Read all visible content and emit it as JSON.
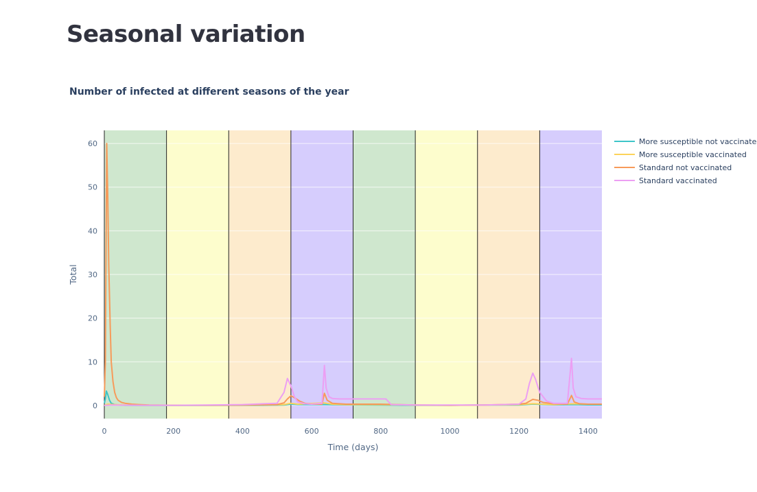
{
  "page": {
    "title": "Seasonal variation"
  },
  "chart_data": {
    "type": "line",
    "title": "Number of infected at different seasons of the year",
    "xlabel": "Time (days)",
    "ylabel": "Total",
    "xlim": [
      0,
      1440
    ],
    "ylim": [
      -3,
      63
    ],
    "xticks": [
      0,
      200,
      400,
      600,
      800,
      1000,
      1200,
      1400
    ],
    "yticks": [
      0,
      10,
      20,
      30,
      40,
      50,
      60
    ],
    "grid": true,
    "legend_position": "top-right",
    "season_bands": [
      {
        "start": 0,
        "end": 180,
        "color": "#cfe7ce"
      },
      {
        "start": 180,
        "end": 360,
        "color": "#fdfdcd"
      },
      {
        "start": 360,
        "end": 540,
        "color": "#fdebcd"
      },
      {
        "start": 540,
        "end": 720,
        "color": "#d6cdfd"
      },
      {
        "start": 720,
        "end": 900,
        "color": "#cfe7ce"
      },
      {
        "start": 900,
        "end": 1080,
        "color": "#fdfdcd"
      },
      {
        "start": 1080,
        "end": 1260,
        "color": "#fdebcd"
      },
      {
        "start": 1260,
        "end": 1440,
        "color": "#d6cdfd"
      }
    ],
    "season_boundaries": [
      0,
      180,
      360,
      540,
      720,
      900,
      1080,
      1260
    ],
    "series": [
      {
        "name": "More susceptible not vaccinated",
        "color": "#3dc5c8",
        "x": [
          0,
          3,
          6,
          10,
          15,
          20,
          30,
          45,
          60,
          100,
          200,
          400,
          520,
          540,
          560,
          640,
          700,
          800,
          900,
          1000,
          1100,
          1200,
          1240,
          1300,
          1355,
          1400,
          1440
        ],
        "y": [
          0.5,
          1.5,
          3.3,
          2.5,
          1.2,
          0.5,
          0.2,
          0.1,
          0.05,
          0.02,
          0.02,
          0.05,
          0.1,
          0.3,
          0.2,
          0.2,
          0.15,
          0.1,
          0.05,
          0.05,
          0.1,
          0.1,
          0.3,
          0.15,
          0.2,
          0.15,
          0.15
        ]
      },
      {
        "name": "More susceptible vaccinated",
        "color": "#fcd35a",
        "x": [
          0,
          10,
          30,
          60,
          100,
          200,
          400,
          520,
          540,
          560,
          635,
          660,
          700,
          800,
          900,
          1000,
          1100,
          1200,
          1240,
          1300,
          1355,
          1400,
          1440
        ],
        "y": [
          0,
          0.3,
          0.2,
          0.1,
          0.05,
          0.05,
          0.1,
          0.2,
          0.5,
          0.3,
          0.6,
          0.3,
          0.2,
          0.2,
          0.1,
          0.05,
          0.1,
          0.2,
          0.4,
          0.2,
          0.4,
          0.3,
          0.3
        ]
      },
      {
        "name": "Standard not vaccinated",
        "color": "#f79a5a",
        "x": [
          0,
          3,
          7,
          10,
          13,
          17,
          20,
          25,
          30,
          35,
          40,
          50,
          60,
          80,
          100,
          130,
          200,
          300,
          400,
          500,
          520,
          530,
          540,
          550,
          565,
          580,
          600,
          630,
          637,
          645,
          660,
          700,
          800,
          900,
          1000,
          1100,
          1200,
          1220,
          1240,
          1255,
          1270,
          1300,
          1340,
          1352,
          1360,
          1375,
          1400,
          1440
        ],
        "y": [
          2,
          10,
          60,
          48,
          32,
          18,
          10,
          5.5,
          3,
          1.8,
          1.2,
          0.7,
          0.5,
          0.3,
          0.2,
          0.1,
          0.05,
          0.05,
          0.1,
          0.2,
          0.6,
          1.5,
          2.2,
          1.8,
          1.0,
          0.5,
          0.3,
          0.3,
          2.8,
          1.2,
          0.5,
          0.3,
          0.3,
          0.1,
          0.05,
          0.1,
          0.3,
          0.5,
          1.4,
          1.2,
          0.7,
          0.4,
          0.3,
          2.3,
          0.8,
          0.4,
          0.3,
          0.3
        ]
      },
      {
        "name": "Standard vaccinated",
        "color": "#ec9ff3",
        "x": [
          0,
          20,
          100,
          200,
          300,
          400,
          500,
          520,
          530,
          540,
          550,
          560,
          580,
          600,
          630,
          637,
          642,
          650,
          660,
          680,
          700,
          800,
          815,
          830,
          900,
          1000,
          1100,
          1200,
          1220,
          1230,
          1240,
          1248,
          1260,
          1280,
          1300,
          1340,
          1352,
          1357,
          1365,
          1380,
          1400,
          1440
        ],
        "y": [
          0,
          0.1,
          0.05,
          0.05,
          0.1,
          0.2,
          0.5,
          3,
          6.2,
          4.5,
          2,
          0.8,
          0.4,
          0.3,
          0.5,
          9.2,
          4,
          2,
          1.6,
          1.5,
          1.5,
          1.5,
          1.5,
          0.2,
          0.1,
          0.1,
          0.1,
          0.3,
          1.5,
          5,
          7.4,
          6,
          3,
          1,
          0.5,
          0.5,
          10.8,
          4,
          2,
          1.6,
          1.5,
          1.5
        ]
      }
    ]
  }
}
